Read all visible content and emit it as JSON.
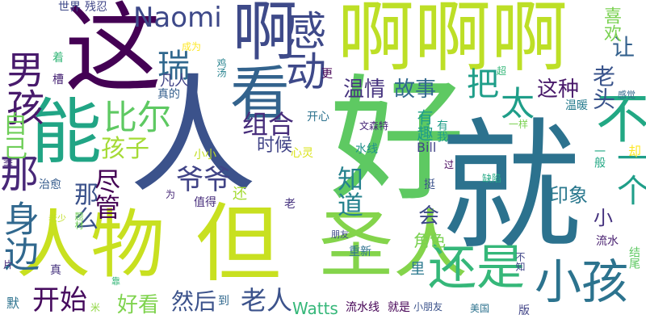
{
  "words": [
    {
      "text": "人",
      "color": "#3b528b"
    },
    {
      "text": "好",
      "color": "#5ec962"
    },
    {
      "text": "就",
      "color": "#2c728e"
    },
    {
      "text": "啊啊啊",
      "color": "#bddf26"
    },
    {
      "text": "人物",
      "color": "#c8e020"
    },
    {
      "text": "但",
      "color": "#c8e020"
    },
    {
      "text": "圣人",
      "color": "#84d44b"
    },
    {
      "text": "这",
      "color": "#440154"
    },
    {
      "text": "能",
      "color": "#21a585"
    },
    {
      "text": "啊",
      "color": "#3e4a89"
    },
    {
      "text": "看",
      "color": "#33638d"
    },
    {
      "text": "男孩",
      "color": "#481a6c"
    },
    {
      "text": "感动",
      "color": "#3e4989"
    },
    {
      "text": "不",
      "color": "#22a884"
    },
    {
      "text": "还是",
      "color": "#35b779"
    },
    {
      "text": "小孩",
      "color": "#2c738e"
    },
    {
      "text": "比尔",
      "color": "#5ec962"
    },
    {
      "text": "身边",
      "color": "#31688e"
    },
    {
      "text": "Naomi",
      "color": "#3e4989"
    },
    {
      "text": "瑞",
      "color": "#31688e"
    },
    {
      "text": "尽管",
      "color": "#440154"
    },
    {
      "text": "那",
      "color": "#482878"
    },
    {
      "text": "那么",
      "color": "#3b528b"
    },
    {
      "text": "爷爷",
      "color": "#414487"
    },
    {
      "text": "知道",
      "color": "#26828e"
    },
    {
      "text": "组合",
      "color": "#472d7b"
    },
    {
      "text": "自己",
      "color": "#6ece58"
    },
    {
      "text": "孩子",
      "color": "#a5db36"
    },
    {
      "text": "把",
      "color": "#1f9e89"
    },
    {
      "text": "太",
      "color": "#1f9e89"
    },
    {
      "text": "一个",
      "color": "#1f9e89"
    },
    {
      "text": "这种",
      "color": "#48186a"
    },
    {
      "text": "老头",
      "color": "#3a548c"
    },
    {
      "text": "让",
      "color": "#34618d"
    },
    {
      "text": "喜欢",
      "color": "#7ad151"
    },
    {
      "text": "温情",
      "color": "#46337f"
    },
    {
      "text": "故事",
      "color": "#31688e"
    },
    {
      "text": "时候",
      "color": "#414487"
    },
    {
      "text": "开始",
      "color": "#460b5e"
    },
    {
      "text": "好看",
      "color": "#7fd34e"
    },
    {
      "text": "然后",
      "color": "#3b528b"
    },
    {
      "text": "老人",
      "color": "#3b528b"
    },
    {
      "text": "Watts",
      "color": "#35b779"
    },
    {
      "text": "会",
      "color": "#3e4989"
    },
    {
      "text": "印象",
      "color": "#2a788e"
    },
    {
      "text": "小",
      "color": "#46337f"
    },
    {
      "text": "角色",
      "color": "#7ad151"
    },
    {
      "text": "有趣",
      "color": "#1f9e89"
    },
    {
      "text": "有我",
      "color": "#1f9e89"
    },
    {
      "text": "Bill",
      "color": "#414487"
    },
    {
      "text": "水线",
      "color": "#21918c"
    },
    {
      "text": "开心",
      "color": "#2c728e"
    },
    {
      "text": "文森特",
      "color": "#482878"
    },
    {
      "text": "世界",
      "color": "#3e4989"
    },
    {
      "text": "残忍",
      "color": "#404688"
    },
    {
      "text": "成为",
      "color": "#fde725"
    },
    {
      "text": "凡人",
      "color": "#414487"
    },
    {
      "text": "真的",
      "color": "#355f8d"
    },
    {
      "text": "鸡汤",
      "color": "#26828e"
    },
    {
      "text": "更",
      "color": "#440154"
    },
    {
      "text": "超",
      "color": "#35b779"
    },
    {
      "text": "一样",
      "color": "#7ad151"
    },
    {
      "text": "温暖",
      "color": "#287c8e"
    },
    {
      "text": "感觉",
      "color": "#31688e"
    },
    {
      "text": "一般",
      "color": "#22a884"
    },
    {
      "text": "却",
      "color": "#fde725"
    },
    {
      "text": "着",
      "color": "#35b779"
    },
    {
      "text": "槽",
      "color": "#482575"
    },
    {
      "text": "季",
      "color": "#482878"
    },
    {
      "text": "治愈",
      "color": "#365c8d"
    },
    {
      "text": "为",
      "color": "#482878"
    },
    {
      "text": "值得",
      "color": "#472d7b"
    },
    {
      "text": "还",
      "color": "#a5db36"
    },
    {
      "text": "老",
      "color": "#46337f"
    },
    {
      "text": "小小",
      "color": "#c2df23"
    },
    {
      "text": "心灵",
      "color": "#dae319"
    },
    {
      "text": "过",
      "color": "#44015b"
    },
    {
      "text": "挺",
      "color": "#3b528b"
    },
    {
      "text": "缺陷",
      "color": "#22a884"
    },
    {
      "text": "流水",
      "color": "#481f70"
    },
    {
      "text": "结尾",
      "color": "#5ec962"
    },
    {
      "text": "不知",
      "color": "#404688"
    },
    {
      "text": "老少",
      "color": "#c0df25"
    },
    {
      "text": "题材",
      "color": "#6ece58"
    },
    {
      "text": "朋友",
      "color": "#3e4989"
    },
    {
      "text": "重新",
      "color": "#2c728e"
    },
    {
      "text": "里",
      "color": "#2a788e"
    },
    {
      "text": "真",
      "color": "#46337f"
    },
    {
      "text": "靠",
      "color": "#35b779"
    },
    {
      "text": "片",
      "color": "#482878"
    },
    {
      "text": "默",
      "color": "#2c728e"
    },
    {
      "text": "米",
      "color": "#90d743"
    },
    {
      "text": "到",
      "color": "#31688e"
    },
    {
      "text": "流水线",
      "color": "#440154"
    },
    {
      "text": "就是",
      "color": "#440154"
    },
    {
      "text": "小朋友",
      "color": "#3b528b"
    },
    {
      "text": "美国",
      "color": "#2c728e"
    },
    {
      "text": "版",
      "color": "#414487"
    }
  ]
}
